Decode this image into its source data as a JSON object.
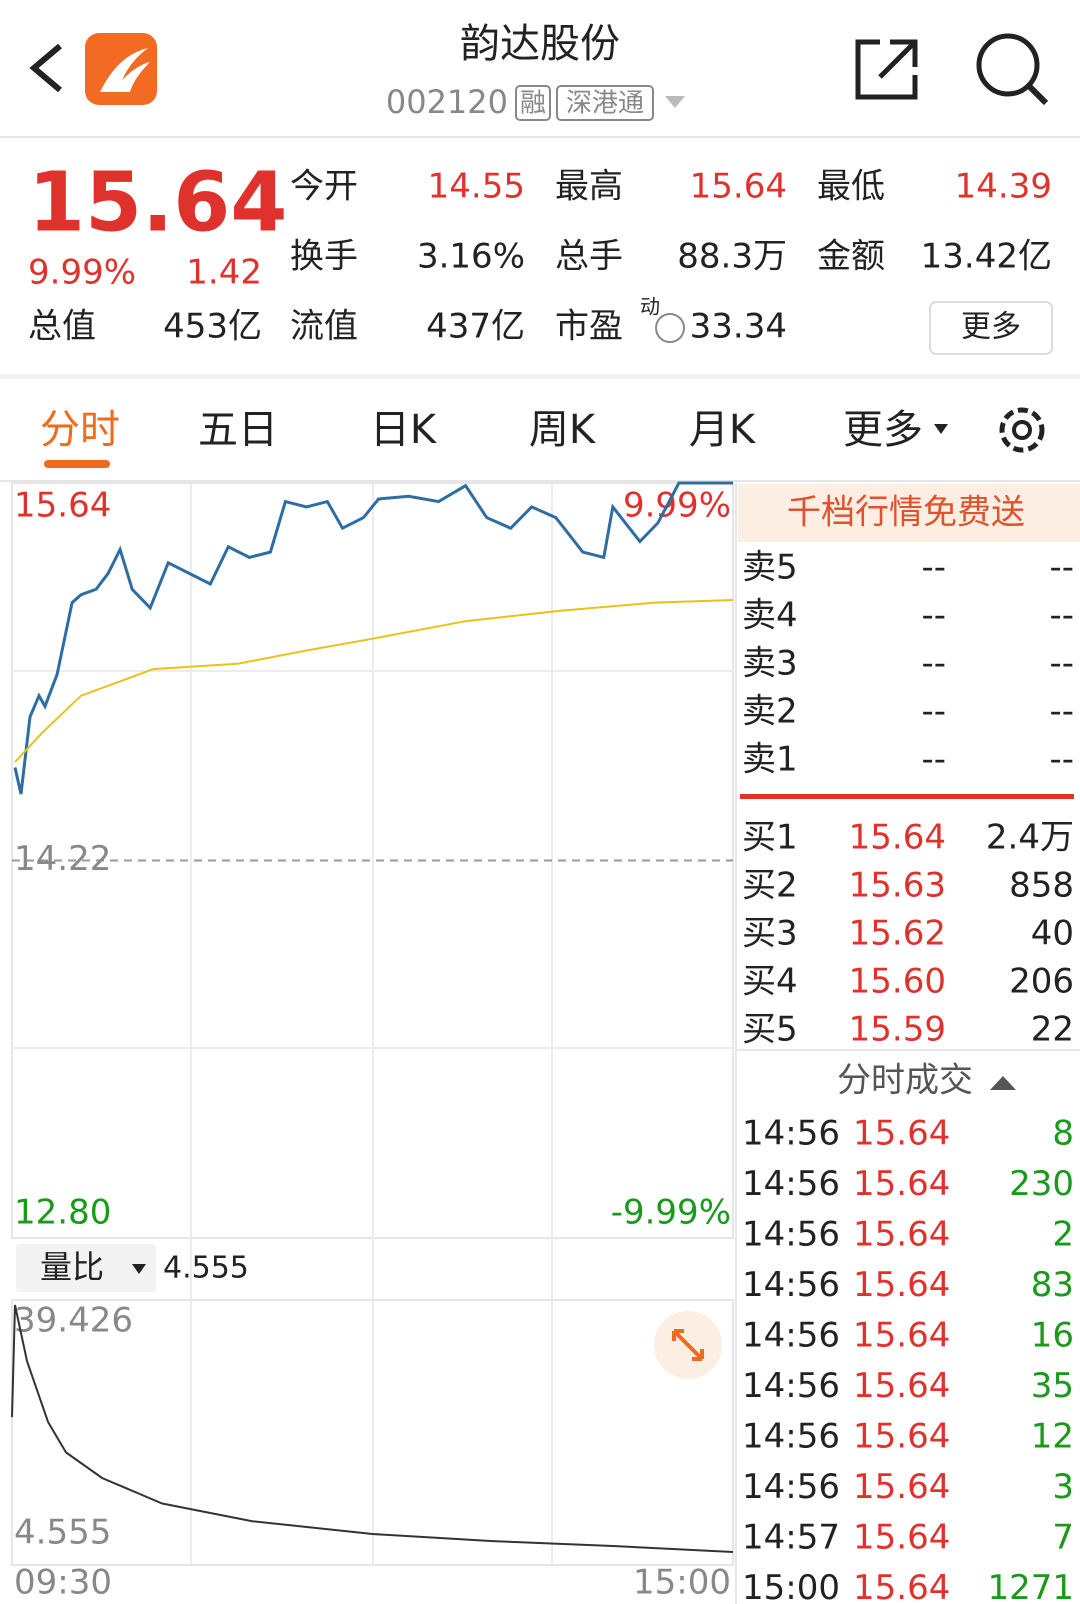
{
  "header": {
    "title": "韵达股份",
    "code": "002120",
    "badges": [
      "融",
      "深港通"
    ]
  },
  "quote": {
    "price": "15.64",
    "change_pct": "9.99%",
    "change": "1.42",
    "fields": [
      {
        "label": "今开",
        "value": "14.55"
      },
      {
        "label": "最高",
        "value": "15.64"
      },
      {
        "label": "最低",
        "value": "14.39"
      },
      {
        "label": "换手",
        "value": "3.16%"
      },
      {
        "label": "总手",
        "value": "88.3万"
      },
      {
        "label": "金额",
        "value": "13.42亿"
      },
      {
        "label": "总值",
        "value": "453亿"
      },
      {
        "label": "流值",
        "value": "437亿"
      },
      {
        "label": "市盈",
        "sup": "动",
        "value": "33.34"
      }
    ],
    "more": "更多"
  },
  "tabs": [
    "分时",
    "五日",
    "日K",
    "周K",
    "月K",
    "更多"
  ],
  "intraday": {
    "type": "line",
    "xlim": [
      0,
      240
    ],
    "xticks": [
      {
        "value": 0,
        "label": "09:30"
      },
      {
        "value": 240,
        "label": "15:00"
      }
    ],
    "ylim": [
      12.8,
      15.64
    ],
    "yticks": [
      15.64,
      14.22,
      {
        "value": 12.8,
        "label": "12.80"
      }
    ],
    "y2lim": [
      -9.99,
      9.99
    ],
    "y2ticks": [
      {
        "value": 9.99,
        "label": "9.99%"
      },
      {
        "value": -9.99,
        "label": "-9.99%"
      }
    ],
    "series": [
      {
        "color": "#2e6da4",
        "x": [
          1,
          3,
          6,
          9,
          11,
          15,
          20,
          23,
          28,
          32,
          36,
          40,
          46,
          52,
          59,
          66,
          72,
          79,
          86,
          91,
          98,
          105,
          110,
          117,
          122,
          132,
          142,
          151,
          158,
          166,
          173,
          181,
          190,
          197,
          200,
          209,
          215,
          222,
          240
        ],
        "values": [
          14.57,
          14.47,
          14.76,
          14.84,
          14.8,
          14.92,
          15.19,
          15.22,
          15.24,
          15.3,
          15.39,
          15.24,
          15.17,
          15.34,
          15.3,
          15.26,
          15.4,
          15.36,
          15.38,
          15.57,
          15.55,
          15.57,
          15.47,
          15.51,
          15.58,
          15.59,
          15.57,
          15.63,
          15.51,
          15.47,
          15.55,
          15.51,
          15.38,
          15.36,
          15.55,
          15.42,
          15.49,
          15.64,
          15.64
        ]
      },
      {
        "color": "#e8c21a",
        "x": [
          1,
          10,
          23,
          47,
          75,
          98,
          118,
          151,
          183,
          214,
          240
        ],
        "values": [
          14.59,
          14.7,
          14.84,
          14.94,
          14.96,
          15.01,
          15.05,
          15.12,
          15.16,
          15.19,
          15.2
        ]
      }
    ]
  },
  "ratio": {
    "type": "line",
    "selector": "量比",
    "current": "4.555",
    "ylim": [
      4.555,
      39.426
    ],
    "yticks": [
      39.426,
      4.555
    ],
    "series": [
      {
        "color": "#333333",
        "x": [
          0,
          1,
          5,
          12,
          18,
          30,
          50,
          80,
          120,
          160,
          200,
          240
        ],
        "values": [
          23.6,
          39.426,
          31.5,
          22.9,
          18.6,
          15,
          11.4,
          8.9,
          7.1,
          6.1,
          5.4,
          4.555
        ]
      }
    ]
  },
  "orderbook": {
    "banner": "千档行情免费送",
    "asks": [
      [
        "卖5",
        "--",
        "--"
      ],
      [
        "卖4",
        "--",
        "--"
      ],
      [
        "卖3",
        "--",
        "--"
      ],
      [
        "卖2",
        "--",
        "--"
      ],
      [
        "卖1",
        "--",
        "--"
      ]
    ],
    "bids": [
      [
        "买1",
        "15.64",
        "2.4万"
      ],
      [
        "买2",
        "15.63",
        "858"
      ],
      [
        "买3",
        "15.62",
        "40"
      ],
      [
        "买4",
        "15.60",
        "206"
      ],
      [
        "买5",
        "15.59",
        "22"
      ]
    ]
  },
  "trades": {
    "title": "分时成交",
    "rows": [
      [
        "14:56",
        "15.64",
        "8"
      ],
      [
        "14:56",
        "15.64",
        "230"
      ],
      [
        "14:56",
        "15.64",
        "2"
      ],
      [
        "14:56",
        "15.64",
        "83"
      ],
      [
        "14:56",
        "15.64",
        "16"
      ],
      [
        "14:56",
        "15.64",
        "35"
      ],
      [
        "14:56",
        "15.64",
        "12"
      ],
      [
        "14:56",
        "15.64",
        "3"
      ],
      [
        "14:57",
        "15.64",
        "7"
      ],
      [
        "15:00",
        "15.64",
        "1271"
      ]
    ]
  }
}
